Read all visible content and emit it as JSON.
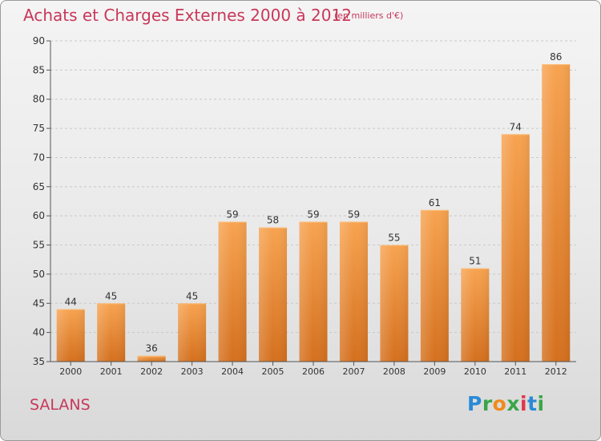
{
  "title": "Achats et Charges Externes 2000 à 2012",
  "subtitle": "(en milliers d'€)",
  "commune": "SALANS",
  "logo": {
    "letters": [
      "P",
      "r",
      "o",
      "x",
      "i",
      "t",
      "i"
    ],
    "colors": [
      "#2a8ad6",
      "#3aa54a",
      "#f08a1c",
      "#3aa54a",
      "#e0364a",
      "#2a8ad6",
      "#3aa54a"
    ]
  },
  "colors": {
    "title": "#c8385a",
    "bar_light": "#f7a350",
    "bar_dark": "#d4701e",
    "grid": "#c8c8c8"
  },
  "chart_data": {
    "type": "bar",
    "categories": [
      "2000",
      "2001",
      "2002",
      "2003",
      "2004",
      "2005",
      "2006",
      "2007",
      "2008",
      "2009",
      "2010",
      "2011",
      "2012"
    ],
    "values": [
      44,
      45,
      36,
      45,
      59,
      58,
      59,
      59,
      55,
      61,
      51,
      74,
      86
    ],
    "ylim": [
      35,
      90
    ],
    "yticks": [
      35,
      40,
      45,
      50,
      55,
      60,
      65,
      70,
      75,
      80,
      85,
      90
    ],
    "grid": "horizontal dashed",
    "data_labels": true
  }
}
